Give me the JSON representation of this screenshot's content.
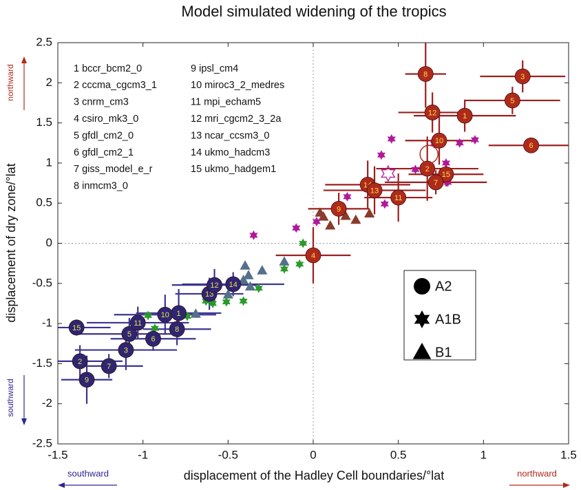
{
  "chart_data": {
    "type": "scatter",
    "title": "Model simulated widening of the tropics",
    "x_label": "displacement of the Hadley Cell boundaries/°lat",
    "y_label": "displacement of dry zone/°lat",
    "xlim": [
      -1.5,
      1.5
    ],
    "ylim": [
      -2.5,
      2.5
    ],
    "xticks": [
      -1.5,
      -1,
      -0.5,
      0,
      0.5,
      1,
      1.5
    ],
    "yticks": [
      -2.5,
      -2,
      -1.5,
      -1,
      -0.5,
      0,
      0.5,
      1,
      1.5,
      2,
      2.5
    ],
    "models": [
      "1 bccr_bcm2_0",
      "2 cccma_cgcm3_1",
      "3 cnrm_cm3",
      "4 csiro_mk3_0",
      "5 gfdl_cm2_0",
      "6 gfdl_cm2_1",
      "7 giss_model_e_r",
      "8 inmcm3_0",
      "9 ipsl_cm4",
      "10 miroc3_2_medres",
      "11 mpi_echam5",
      "12 mri_cgcm2_3_2a",
      "13 ncar_ccsm3_0",
      "14 ukmo_hadcm3",
      "15 ukmo_hadgem1"
    ],
    "annotations": {
      "y_up": "northward",
      "y_down": "southward",
      "x_left": "southward",
      "x_right": "northward"
    },
    "series": [
      {
        "name": "A2",
        "marker": "circle",
        "color": "#b02a1c",
        "bar_color": "#9c1f1f",
        "labels": [
          "8",
          "3",
          "5",
          "12",
          "1",
          "10",
          "6",
          "2",
          "15",
          "7",
          "14",
          "13",
          "11",
          "9",
          "4"
        ],
        "x": [
          0.66,
          1.23,
          1.17,
          0.7,
          0.89,
          0.74,
          1.28,
          0.67,
          0.78,
          0.72,
          0.32,
          0.36,
          0.5,
          0.15,
          0.0
        ],
        "values": [
          2.11,
          2.08,
          1.78,
          1.63,
          1.59,
          1.28,
          1.22,
          0.93,
          0.86,
          0.76,
          0.73,
          0.66,
          0.57,
          0.43,
          -0.15
        ],
        "xerr": [
          0.12,
          0.25,
          0.28,
          0.2,
          0.3,
          0.2,
          0.25,
          0.3,
          0.22,
          0.3,
          0.25,
          0.3,
          0.2,
          0.18,
          0.22
        ],
        "yerr": [
          0.42,
          0.2,
          0.17,
          0.25,
          0.2,
          0.3,
          0.08,
          0.4,
          0.15,
          0.15,
          0.3,
          0.3,
          0.3,
          0.2,
          0.35
        ]
      },
      {
        "name": "A2",
        "marker": "circle",
        "color": "#2d2672",
        "bar_color": "#3a3490",
        "labels": [
          "15",
          "2",
          "9",
          "7",
          "3",
          "5",
          "11",
          "6",
          "10",
          "1",
          "8",
          "13",
          "12",
          "14"
        ],
        "x": [
          -1.39,
          -1.37,
          -1.33,
          -1.2,
          -1.1,
          -1.08,
          -1.03,
          -0.94,
          -0.87,
          -0.79,
          -0.8,
          -0.61,
          -0.58,
          -0.47
        ],
        "values": [
          -1.05,
          -1.47,
          -1.7,
          -1.53,
          -1.33,
          -1.13,
          -0.99,
          -1.19,
          -0.89,
          -0.87,
          -1.07,
          -0.63,
          -0.52,
          -0.51
        ],
        "xerr": [
          0.2,
          0.25,
          0.15,
          0.2,
          0.3,
          0.3,
          0.3,
          0.25,
          0.3,
          0.25,
          0.2,
          0.2,
          0.25,
          0.3
        ],
        "yerr": [
          0.1,
          0.2,
          0.3,
          0.15,
          0.25,
          0.2,
          0.2,
          0.15,
          0.25,
          0.3,
          0.2,
          0.2,
          0.2,
          0.15
        ]
      },
      {
        "name": "A2",
        "marker": "open-circle",
        "color": "#b02a1c",
        "x": [
          0.68
        ],
        "values": [
          1.11
        ]
      },
      {
        "name": "A1B",
        "marker": "star",
        "color": "#b0199a",
        "x": [
          0.46,
          0.71,
          0.86,
          0.95,
          0.4,
          0.78,
          0.6,
          0.79,
          0.42,
          0.2,
          0.02,
          -0.1,
          -0.35
        ],
        "values": [
          1.3,
          1.24,
          1.25,
          1.29,
          1.1,
          1.0,
          0.92,
          0.76,
          0.49,
          0.58,
          0.27,
          0.19,
          0.1
        ]
      },
      {
        "name": "A1B",
        "marker": "open-star",
        "color": "#b0199a",
        "x": [
          0.44
        ],
        "values": [
          0.87
        ]
      },
      {
        "name": "A1B",
        "marker": "star",
        "color": "#2a9a2a",
        "x": [
          -0.06,
          -0.08,
          -0.17,
          -0.32,
          -0.41,
          -0.51,
          -0.59,
          -0.63,
          -0.74,
          -0.97,
          -0.93
        ],
        "values": [
          0.0,
          -0.26,
          -0.32,
          -0.56,
          -0.72,
          -0.73,
          -0.75,
          -0.72,
          -0.91,
          -0.9,
          -1.06
        ]
      },
      {
        "name": "B1",
        "marker": "triangle",
        "color": "#8a3c2c",
        "x": [
          0.04,
          0.06,
          0.1,
          0.19,
          0.25,
          0.33
        ],
        "values": [
          0.38,
          0.33,
          0.22,
          0.34,
          0.29,
          0.37
        ]
      },
      {
        "name": "B1",
        "marker": "triangle",
        "color": "#55708a",
        "x": [
          -0.4,
          -0.3,
          -0.17,
          -0.41,
          -0.38,
          -0.5,
          -0.69,
          -0.37
        ],
        "values": [
          -0.28,
          -0.34,
          -0.23,
          -0.46,
          -0.4,
          -0.64,
          -0.88,
          -0.54
        ]
      }
    ]
  }
}
